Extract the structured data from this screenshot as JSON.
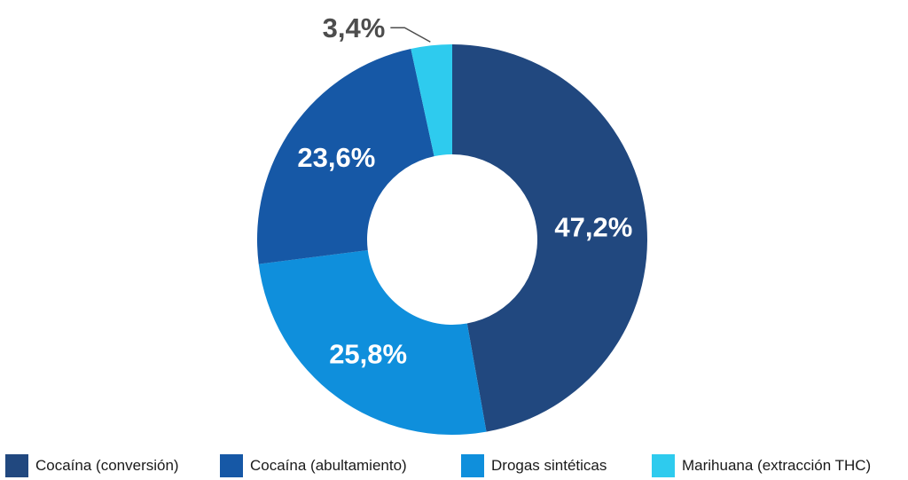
{
  "chart_data": {
    "type": "pie",
    "donut": true,
    "title": "",
    "slices": [
      {
        "name": "Cocaína (conversión)",
        "value": 47.2,
        "label": "47,2%",
        "color": "#21487f"
      },
      {
        "name": "Drogas sintéticas",
        "value": 25.8,
        "label": "25,8%",
        "color": "#0f8fdc"
      },
      {
        "name": "Cocaína (abultamiento)",
        "value": 23.6,
        "label": "23,6%",
        "color": "#1658a6"
      },
      {
        "name": "Marihuana (extracción THC)",
        "value": 3.4,
        "label": "3,4%",
        "color": "#2ecbee"
      }
    ],
    "legend_position": "bottom"
  },
  "legend": {
    "items": [
      {
        "label": "Cocaína (conversión)",
        "color": "#21487f"
      },
      {
        "label": "Cocaína (abultamiento)",
        "color": "#1658a6"
      },
      {
        "label": "Drogas sintéticas",
        "color": "#0f8fdc"
      },
      {
        "label": "Marihuana (extracción THC)",
        "color": "#2ecbee"
      }
    ]
  }
}
